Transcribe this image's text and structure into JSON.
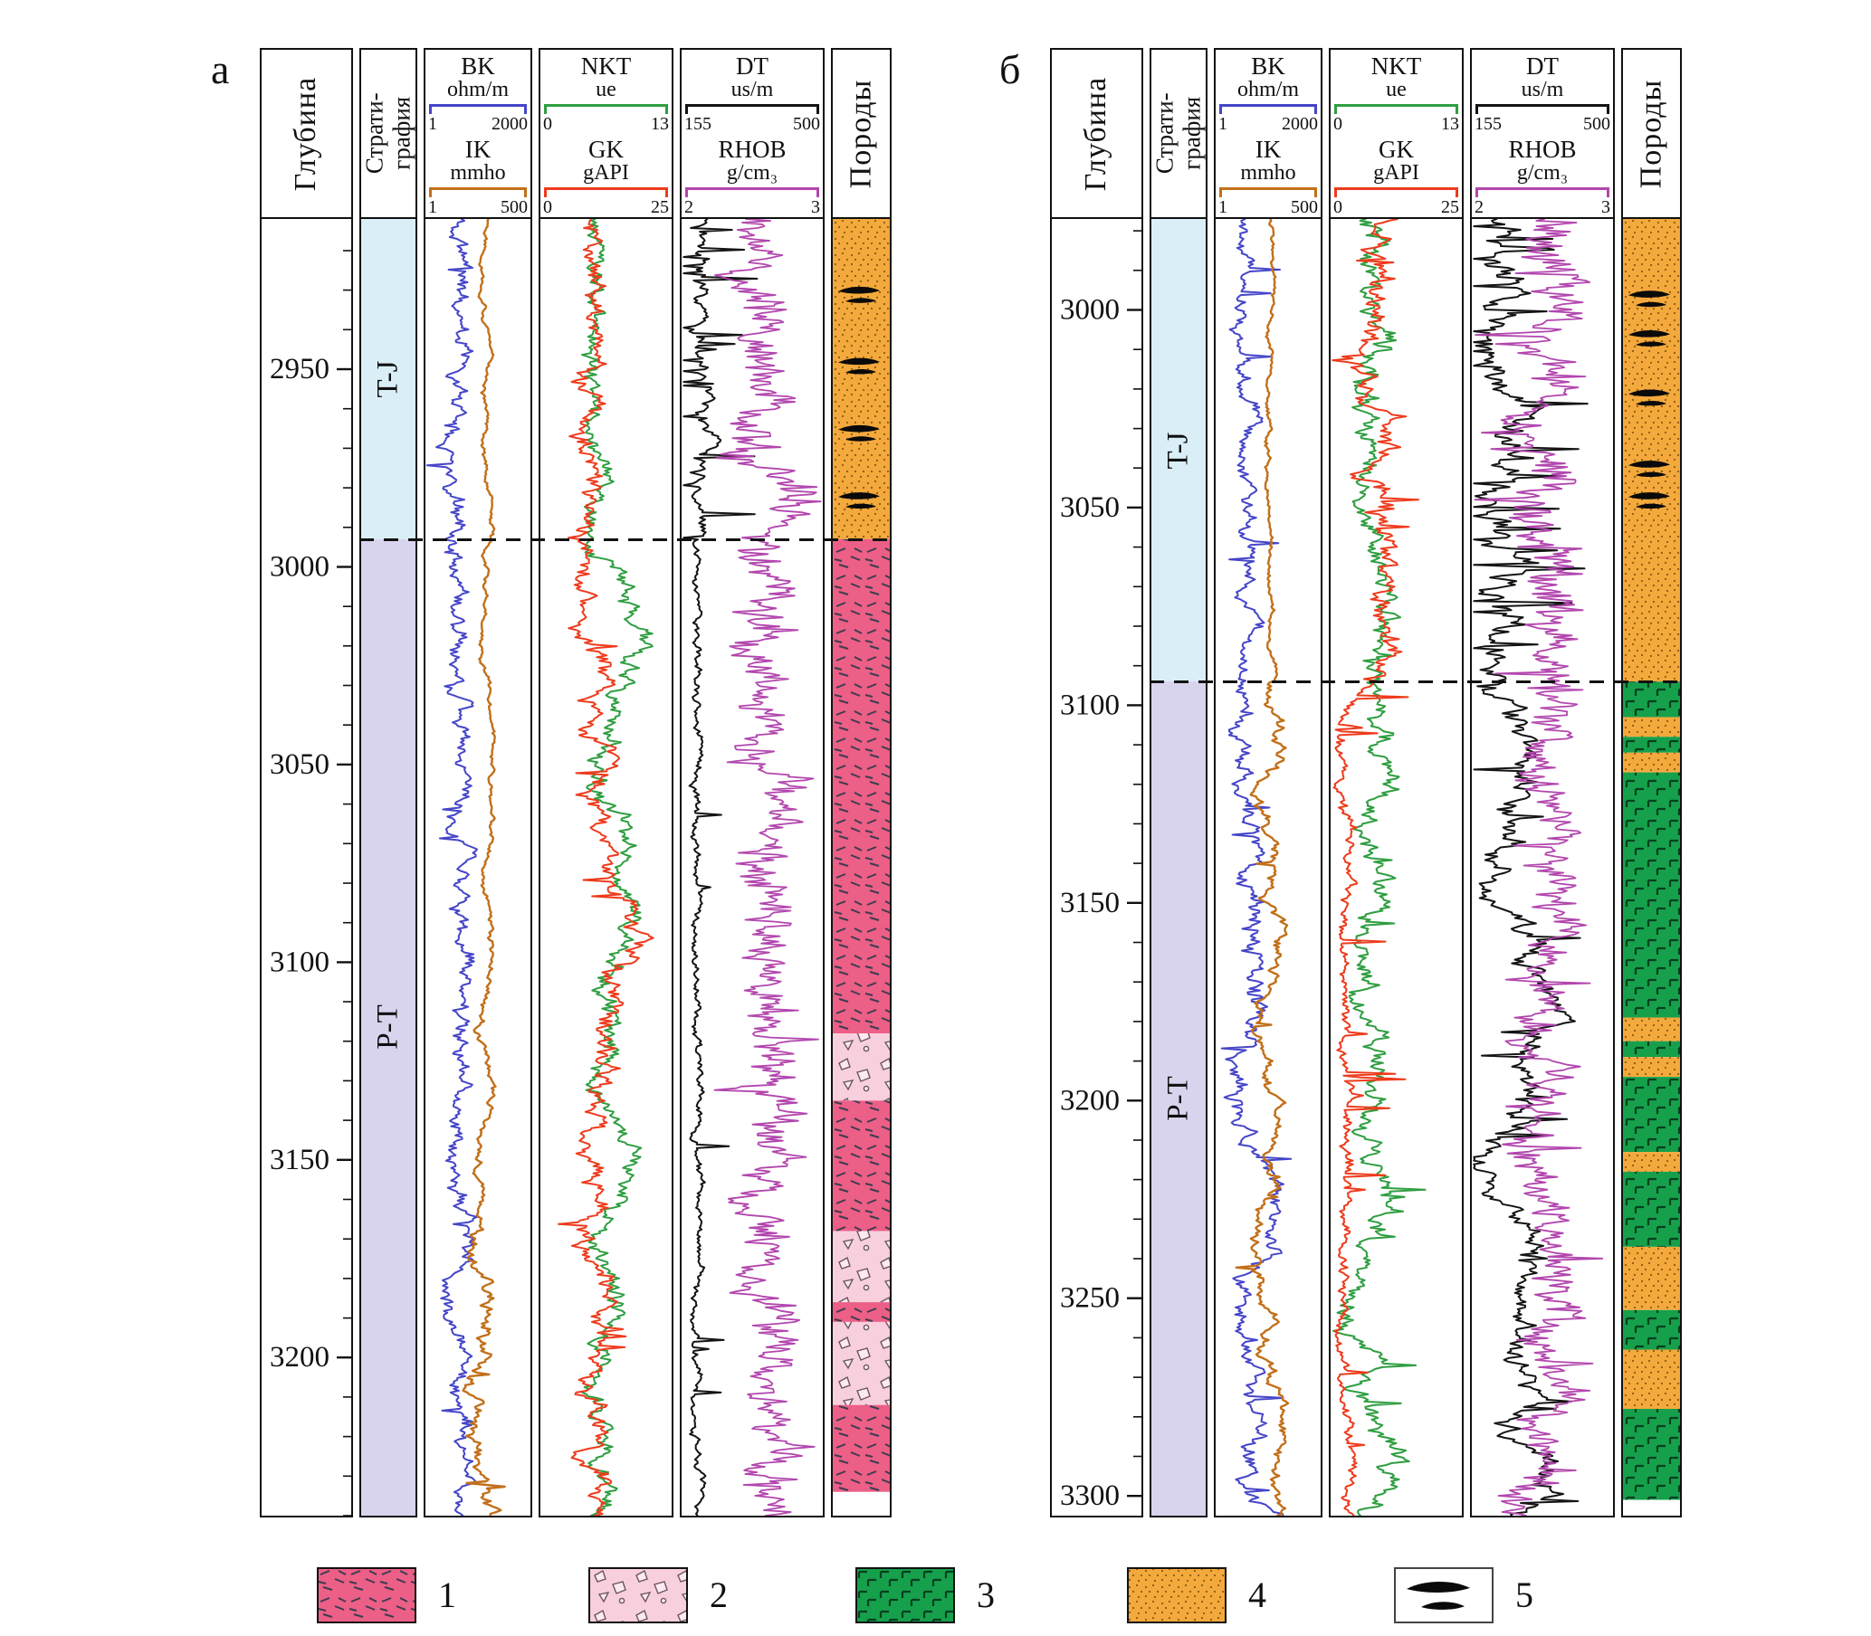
{
  "figure": {
    "panel_letters": [
      "а",
      "б"
    ],
    "column_headers": {
      "depth": "Глубина",
      "strat_line1": "Страти-",
      "strat_line2": "графия",
      "lith": "Породы"
    },
    "legend": [
      {
        "number": "1",
        "pattern": 1,
        "name": "effusive-pink-dashes"
      },
      {
        "number": "2",
        "pattern": 2,
        "name": "breccia-light-pink-clasts"
      },
      {
        "number": "3",
        "pattern": 3,
        "name": "tuff-green-gamma-marks"
      },
      {
        "number": "4",
        "pattern": 4,
        "name": "sandstone-orange-dots"
      },
      {
        "number": "5",
        "pattern": 5,
        "name": "black-lenses"
      }
    ],
    "patterns": {
      "1": {
        "bg": "#ec5f86",
        "mark": "#3c3c50"
      },
      "2": {
        "bg": "#f8cfdc",
        "mark": "#6b5560",
        "clast": "#fce9f1"
      },
      "3": {
        "bg": "#16a04b",
        "mark": "#06401e"
      },
      "4": {
        "bg": "#f4a93d",
        "mark": "#8a5a12"
      },
      "5": {
        "bg": "#ffffff",
        "mark": "#0a0a0a"
      }
    }
  },
  "chart_data": {
    "type": "line",
    "description": "Two vertical well-log panels (а and б). Each panel: depth column (m), stratigraphy column (T-J over P-T separated by dashed boundary), three dual-curve log tracks (BK/IK, NKT/GK, DT/RHOB) and a lithology column keyed to legend patterns 1-5. Curves are stochastic wiggle traces reconstructed from zone models.",
    "panels": [
      {
        "letter": "а",
        "depth_axis": {
          "label": "Глубина",
          "range": [
            2912,
            3240
          ],
          "majors": [
            2950,
            3000,
            3050,
            3100,
            3150,
            3200
          ],
          "minor_step": 10
        },
        "boundary_depth": 2993,
        "strat_zones": [
          {
            "label": "T-J",
            "from": 2912,
            "to": 2993,
            "color": "#daeef8"
          },
          {
            "label": "P-T",
            "from": 2993,
            "to": 3240,
            "color": "#d8d4ee"
          }
        ],
        "tracks": [
          {
            "curves": [
              {
                "name": "BK",
                "unit": "ohm/m",
                "min": "1",
                "max": "2000",
                "color": "#4545c9",
                "width": 2,
                "seed": 11,
                "zones": [
                  {
                    "t": 1,
                    "base": 0.34,
                    "noise": 0.1,
                    "pull": 0.1,
                    "jitter": 0.06,
                    "spike": 0.02,
                    "spikeAmp": 0.22,
                    "dir": -1
                  }
                ]
              },
              {
                "name": "IK",
                "unit": "mmho",
                "min": "1",
                "max": "500",
                "color": "#c2701a",
                "width": 2.4,
                "seed": 22,
                "zones": [
                  {
                    "t": 0.55,
                    "base": 0.6,
                    "noise": 0.035,
                    "pull": 0.05,
                    "jitter": 0.012
                  },
                  {
                    "t": 0.78,
                    "base": 0.54,
                    "noise": 0.05,
                    "pull": 0.05,
                    "jitter": 0.02
                  },
                  {
                    "t": 1,
                    "base": 0.5,
                    "noise": 0.1,
                    "pull": 0.055,
                    "jitter": 0.03,
                    "spike": 0.02,
                    "spikeAmp": 0.25,
                    "dir": 0
                  }
                ]
              }
            ]
          },
          {
            "curves": [
              {
                "name": "NKT",
                "unit": "ue",
                "min": "0",
                "max": "13",
                "color": "#2f9e41",
                "width": 2,
                "seed": 33,
                "zones": [
                  {
                    "t": 0.25,
                    "base": 0.4,
                    "noise": 0.09,
                    "pull": 0.09,
                    "jitter": 0.05
                  },
                  {
                    "t": 1,
                    "base": 0.52,
                    "noise": 0.11,
                    "pull": 0.045,
                    "jitter": 0.05
                  }
                ]
              },
              {
                "name": "GK",
                "unit": "gAPI",
                "min": "0",
                "max": "25",
                "color": "#ee3b1c",
                "width": 2,
                "seed": 44,
                "zones": [
                  {
                    "t": 0.25,
                    "base": 0.37,
                    "noise": 0.11,
                    "pull": 0.09,
                    "jitter": 0.06
                  },
                  {
                    "t": 1,
                    "base": 0.46,
                    "noise": 0.12,
                    "pull": 0.05,
                    "jitter": 0.06,
                    "spike": 0.02,
                    "spikeAmp": 0.2,
                    "dir": 0
                  }
                ]
              }
            ]
          },
          {
            "curves": [
              {
                "name": "DT",
                "unit": "us/m",
                "min": "155",
                "max": "500",
                "color": "#141414",
                "width": 2,
                "seed": 55,
                "zones": [
                  {
                    "t": 0.25,
                    "base": 0.17,
                    "noise": 0.07,
                    "pull": 0.12,
                    "jitter": 0.04,
                    "spike": 0.12,
                    "spikeAmp": 0.5,
                    "dir": 0
                  },
                  {
                    "t": 1,
                    "base": 0.11,
                    "noise": 0.035,
                    "pull": 0.1,
                    "jitter": 0.02,
                    "spike": 0.012,
                    "spikeAmp": 0.3,
                    "dir": 1
                  }
                ]
              },
              {
                "name": "RHOB",
                "unit": "g/cm₃",
                "min": "2",
                "max": "3",
                "color": "#b246ae",
                "width": 1.8,
                "seed": 66,
                "zones": [
                  {
                    "t": 1,
                    "base": 0.62,
                    "noise": 0.16,
                    "pull": 0.16,
                    "jitter": 0.22,
                    "spike": 0.06,
                    "spikeAmp": 0.28,
                    "dir": 0
                  }
                ]
              }
            ]
          }
        ],
        "lithology": [
          {
            "from": 2912,
            "to": 2993,
            "pattern": 4
          },
          {
            "from": 2993,
            "to": 3118,
            "pattern": 1
          },
          {
            "from": 3118,
            "to": 3135,
            "pattern": 2
          },
          {
            "from": 3135,
            "to": 3168,
            "pattern": 1
          },
          {
            "from": 3168,
            "to": 3186,
            "pattern": 2
          },
          {
            "from": 3186,
            "to": 3191,
            "pattern": 1
          },
          {
            "from": 3191,
            "to": 3212,
            "pattern": 2
          },
          {
            "from": 3212,
            "to": 3234,
            "pattern": 1
          },
          {
            "from": 3234,
            "to": 3240,
            "pattern": 0
          }
        ],
        "lens_depths": [
          2931,
          2949,
          2966,
          2983
        ]
      },
      {
        "letter": "б",
        "depth_axis": {
          "label": "Глубина",
          "range": [
            2977,
            3305
          ],
          "majors": [
            3000,
            3050,
            3100,
            3150,
            3200,
            3250,
            3300
          ],
          "minor_step": 10
        },
        "boundary_depth": 3094,
        "strat_zones": [
          {
            "label": "T-J",
            "from": 2977,
            "to": 3094,
            "color": "#daeef8"
          },
          {
            "label": "P-T",
            "from": 3094,
            "to": 3305,
            "color": "#d8d4ee"
          }
        ],
        "tracks": [
          {
            "curves": [
              {
                "name": "BK",
                "unit": "ohm/m",
                "min": "1",
                "max": "2000",
                "color": "#4545c9",
                "width": 2,
                "seed": 17,
                "zones": [
                  {
                    "t": 0.357,
                    "base": 0.28,
                    "noise": 0.09,
                    "pull": 0.1,
                    "jitter": 0.05,
                    "spike": 0.04,
                    "spikeAmp": 0.3,
                    "dir": 0
                  },
                  {
                    "t": 1,
                    "base": 0.3,
                    "noise": 0.13,
                    "pull": 0.06,
                    "jitter": 0.07,
                    "spike": 0.05,
                    "spikeAmp": 0.35,
                    "dir": 0
                  }
                ]
              },
              {
                "name": "IK",
                "unit": "mmho",
                "min": "1",
                "max": "500",
                "color": "#c2701a",
                "width": 2.4,
                "seed": 28,
                "zones": [
                  {
                    "t": 0.357,
                    "base": 0.52,
                    "noise": 0.03,
                    "pull": 0.05,
                    "jitter": 0.012
                  },
                  {
                    "t": 1,
                    "base": 0.5,
                    "noise": 0.09,
                    "pull": 0.045,
                    "jitter": 0.02,
                    "spike": 0.015,
                    "spikeAmp": 0.3,
                    "dir": 0
                  }
                ]
              }
            ]
          },
          {
            "curves": [
              {
                "name": "NKT",
                "unit": "ue",
                "min": "0",
                "max": "13",
                "color": "#2f9e41",
                "width": 2,
                "seed": 39,
                "zones": [
                  {
                    "t": 0.357,
                    "base": 0.3,
                    "noise": 0.12,
                    "pull": 0.07,
                    "jitter": 0.07
                  },
                  {
                    "t": 1,
                    "base": 0.33,
                    "noise": 0.12,
                    "pull": 0.05,
                    "jitter": 0.06,
                    "spike": 0.02,
                    "spikeAmp": 0.3,
                    "dir": 1
                  }
                ]
              },
              {
                "name": "GK",
                "unit": "gAPI",
                "min": "0",
                "max": "25",
                "color": "#ee3b1c",
                "width": 2,
                "seed": 40,
                "zones": [
                  {
                    "t": 0.357,
                    "base": 0.38,
                    "noise": 0.13,
                    "pull": 0.08,
                    "jitter": 0.08,
                    "spike": 0.04,
                    "spikeAmp": 0.25,
                    "dir": 0
                  },
                  {
                    "t": 1,
                    "base": 0.1,
                    "noise": 0.05,
                    "pull": 0.1,
                    "jitter": 0.04,
                    "spike": 0.03,
                    "spikeAmp": 0.45,
                    "dir": 1
                  }
                ]
              }
            ]
          },
          {
            "curves": [
              {
                "name": "DT",
                "unit": "us/m",
                "min": "155",
                "max": "500",
                "color": "#141414",
                "width": 2,
                "seed": 51,
                "zones": [
                  {
                    "t": 0.357,
                    "base": 0.28,
                    "noise": 0.15,
                    "pull": 0.09,
                    "jitter": 0.12,
                    "spike": 0.14,
                    "spikeAmp": 0.55,
                    "dir": 0
                  },
                  {
                    "t": 1,
                    "base": 0.3,
                    "noise": 0.13,
                    "pull": 0.055,
                    "jitter": 0.08,
                    "spike": 0.04,
                    "spikeAmp": 0.35,
                    "dir": 0
                  }
                ]
              },
              {
                "name": "RHOB",
                "unit": "g/cm₃",
                "min": "2",
                "max": "3",
                "color": "#b246ae",
                "width": 1.8,
                "seed": 62,
                "zones": [
                  {
                    "t": 0.357,
                    "base": 0.55,
                    "noise": 0.16,
                    "pull": 0.14,
                    "jitter": 0.25,
                    "spike": 0.09,
                    "spikeAmp": 0.35,
                    "dir": 0
                  },
                  {
                    "t": 1,
                    "base": 0.55,
                    "noise": 0.16,
                    "pull": 0.12,
                    "jitter": 0.22,
                    "spike": 0.05,
                    "spikeAmp": 0.3,
                    "dir": 0
                  }
                ]
              }
            ]
          }
        ],
        "lithology": [
          {
            "from": 2977,
            "to": 3094,
            "pattern": 4
          },
          {
            "from": 3094,
            "to": 3103,
            "pattern": 3
          },
          {
            "from": 3103,
            "to": 3108,
            "pattern": 4
          },
          {
            "from": 3108,
            "to": 3112,
            "pattern": 3
          },
          {
            "from": 3112,
            "to": 3117,
            "pattern": 4
          },
          {
            "from": 3117,
            "to": 3179,
            "pattern": 3
          },
          {
            "from": 3179,
            "to": 3185,
            "pattern": 4
          },
          {
            "from": 3185,
            "to": 3189,
            "pattern": 3
          },
          {
            "from": 3189,
            "to": 3194,
            "pattern": 4
          },
          {
            "from": 3194,
            "to": 3213,
            "pattern": 3
          },
          {
            "from": 3213,
            "to": 3218,
            "pattern": 4
          },
          {
            "from": 3218,
            "to": 3237,
            "pattern": 3
          },
          {
            "from": 3237,
            "to": 3253,
            "pattern": 4
          },
          {
            "from": 3253,
            "to": 3263,
            "pattern": 3
          },
          {
            "from": 3263,
            "to": 3278,
            "pattern": 4
          },
          {
            "from": 3278,
            "to": 3301,
            "pattern": 3
          },
          {
            "from": 3301,
            "to": 3305,
            "pattern": 0
          }
        ],
        "lens_depths": [
          2997,
          3007,
          3022,
          3040,
          3048
        ]
      }
    ]
  }
}
